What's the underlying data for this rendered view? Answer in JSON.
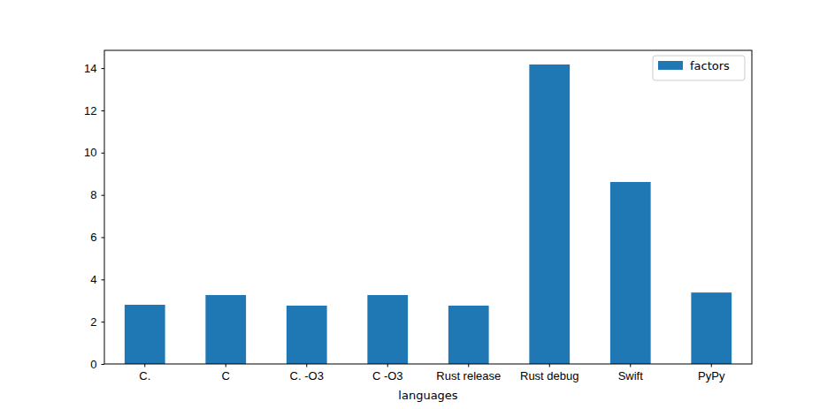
{
  "chart_data": {
    "type": "bar",
    "x_label": "languages",
    "categories": [
      "C.",
      "C",
      "C. -O3",
      "C -O3",
      "Rust release",
      "Rust debug",
      "Swift",
      "PyPy"
    ],
    "series": [
      {
        "name": "factors",
        "color": "#1f77b4",
        "values": [
          2.8,
          3.26,
          2.76,
          3.26,
          2.76,
          14.17,
          8.61,
          3.38
        ]
      }
    ],
    "ylim": [
      0,
      14.84
    ],
    "yticks": [
      0,
      2,
      4,
      6,
      8,
      10,
      12,
      14
    ],
    "grid": false,
    "legend": "upper right"
  }
}
